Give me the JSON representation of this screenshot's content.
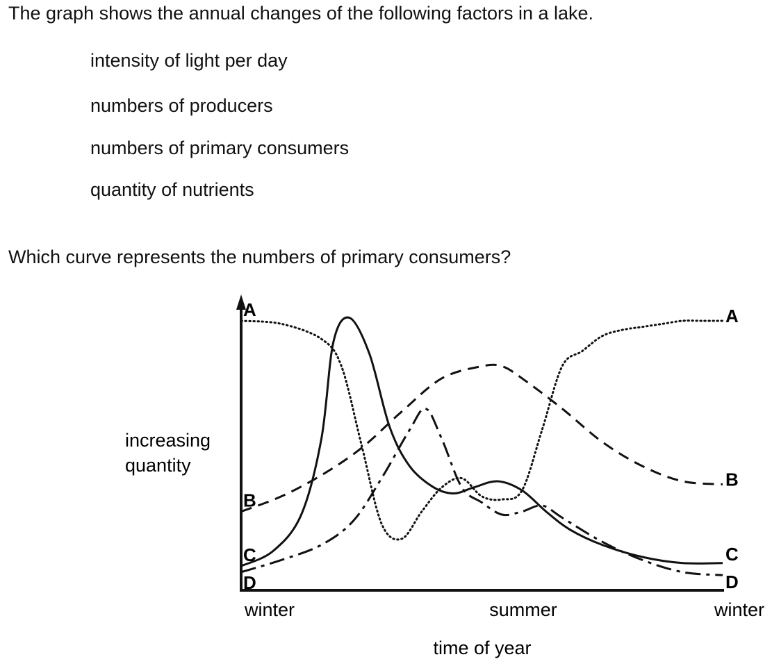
{
  "question": {
    "intro": "The graph shows the annual changes of the following factors in a lake.",
    "factors": [
      "intensity of light per day",
      "numbers of producers",
      "numbers of primary consumers",
      "quantity of nutrients"
    ],
    "prompt": "Which curve represents the numbers of primary consumers?"
  },
  "chart_data": {
    "type": "line",
    "title": "",
    "xlabel": "time of year",
    "ylabel_lines": [
      "increasing",
      "quantity"
    ],
    "x_ticks": [
      "winter",
      "summer",
      "winter"
    ],
    "xlim": [
      0,
      12
    ],
    "ylim": [
      0,
      10
    ],
    "grid": false,
    "legend": "inline-labels",
    "series": [
      {
        "name": "A",
        "style": "dotted",
        "x": [
          0,
          1,
          2,
          2.5,
          3,
          3.5,
          4,
          4.5,
          5,
          5.5,
          6,
          6.5,
          7,
          7.5,
          8,
          8.5,
          9,
          9.5,
          10,
          10.5,
          11,
          11.5,
          12
        ],
        "y": [
          8.9,
          8.8,
          8.3,
          7.4,
          4.8,
          2.2,
          1.7,
          2.6,
          3.4,
          3.7,
          3.1,
          3.0,
          3.3,
          5.3,
          7.4,
          7.9,
          8.4,
          8.6,
          8.7,
          8.8,
          8.9,
          8.9,
          8.9
        ]
      },
      {
        "name": "B",
        "style": "dashed",
        "x": [
          0,
          1,
          2,
          3,
          4,
          5,
          6,
          6.5,
          7,
          8,
          9,
          10,
          11,
          12
        ],
        "y": [
          2.6,
          3.1,
          3.8,
          4.7,
          5.9,
          7.0,
          7.4,
          7.4,
          7.0,
          6.0,
          4.9,
          4.1,
          3.6,
          3.5
        ]
      },
      {
        "name": "C",
        "style": "solid",
        "x": [
          0,
          0.8,
          1.5,
          2,
          2.3,
          2.7,
          3.2,
          3.7,
          4.2,
          4.8,
          5.3,
          5.8,
          6.4,
          7,
          7.6,
          8.2,
          9,
          10,
          11,
          12
        ],
        "y": [
          0.8,
          1.3,
          2.5,
          5.0,
          8.2,
          9.0,
          7.8,
          5.4,
          4.1,
          3.4,
          3.2,
          3.4,
          3.6,
          3.3,
          2.6,
          2.0,
          1.5,
          1.1,
          0.9,
          0.9
        ]
      },
      {
        "name": "D",
        "style": "dash-dot",
        "x": [
          0,
          1,
          2,
          2.8,
          3.5,
          4.2,
          4.6,
          5,
          5.5,
          6,
          6.5,
          7,
          7.5,
          8,
          9,
          10,
          11,
          12
        ],
        "y": [
          0.6,
          1.0,
          1.5,
          2.3,
          3.7,
          5.3,
          6.0,
          5.0,
          3.4,
          2.9,
          2.5,
          2.6,
          2.8,
          2.4,
          1.6,
          1.0,
          0.6,
          0.5
        ]
      }
    ]
  }
}
